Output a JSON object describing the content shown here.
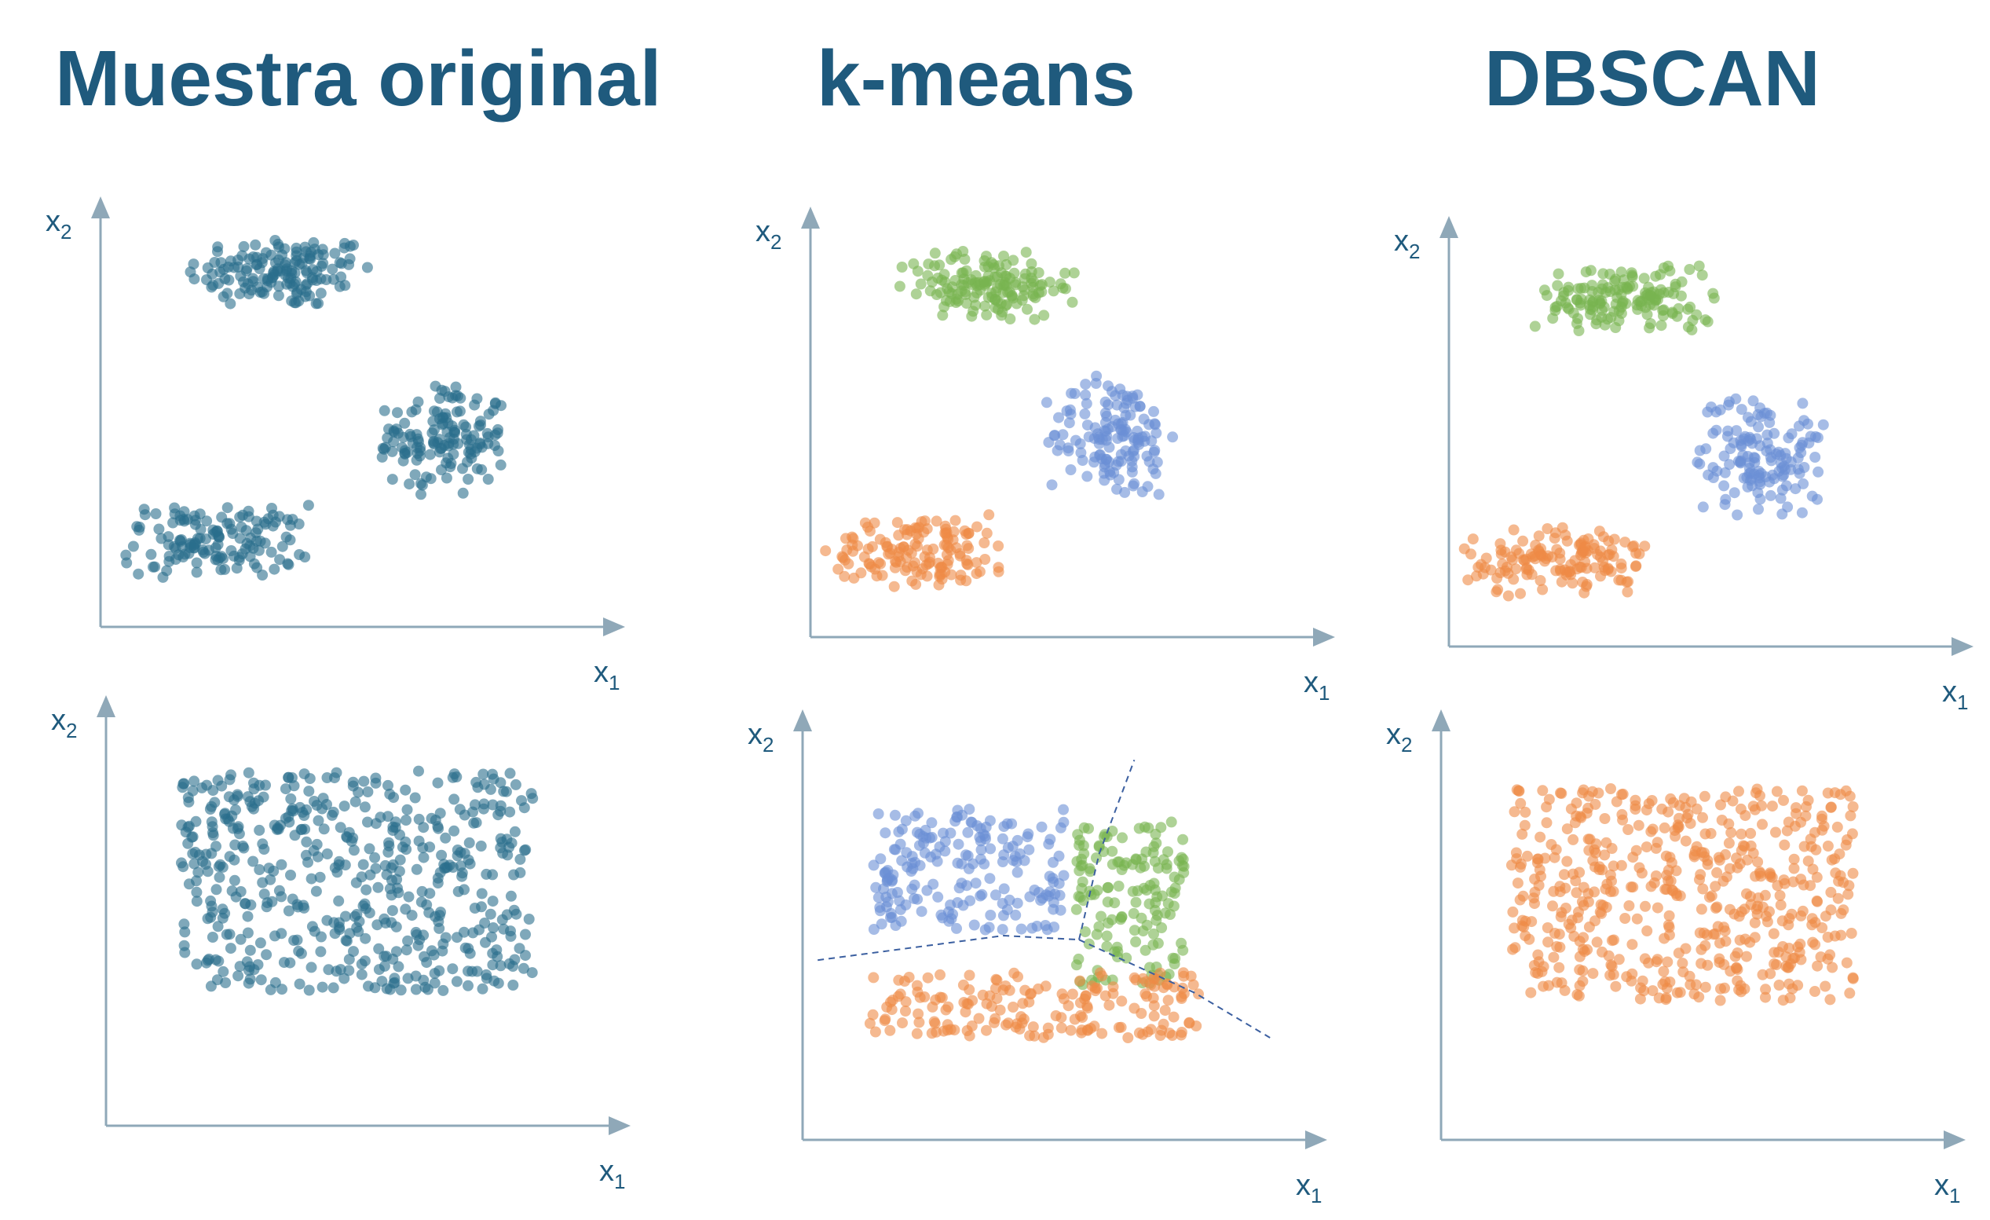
{
  "titles": {
    "original": "Muestra original",
    "kmeans": "k-means",
    "dbscan": "DBSCAN"
  },
  "axis_labels": {
    "x": "x",
    "x_sub": "1",
    "y": "x",
    "y_sub": "2"
  },
  "colors": {
    "raw": "#2a6e8c",
    "cluster_orange": "#ef8a46",
    "cluster_green": "#78b450",
    "cluster_blue": "#6b8fd6",
    "axis": "#8fa8b8",
    "boundary": "#3b5fa0"
  },
  "chart_data": [
    {
      "type": "scatter",
      "panel": "Muestra original / top",
      "xlim": [
        0,
        10
      ],
      "ylim": [
        0,
        10
      ],
      "grid": false,
      "clusters": [
        {
          "color": "raw",
          "center": [
            3.6,
            8.7
          ],
          "spread": [
            1.9,
            0.9
          ],
          "count": 150
        },
        {
          "color": "raw",
          "center": [
            6.8,
            4.6
          ],
          "spread": [
            1.3,
            1.4
          ],
          "count": 140
        },
        {
          "color": "raw",
          "center": [
            2.3,
            2.1
          ],
          "spread": [
            1.9,
            0.9
          ],
          "count": 140
        }
      ]
    },
    {
      "type": "scatter",
      "panel": "Muestra original / bottom",
      "xlim": [
        0,
        10
      ],
      "ylim": [
        0,
        10
      ],
      "grid": false,
      "clusters": [
        {
          "color": "raw",
          "center": [
            5.0,
            6.0
          ],
          "spread": [
            3.5,
            2.7
          ],
          "count": 520,
          "uniform": true
        }
      ]
    },
    {
      "type": "scatter",
      "panel": "k-means / top",
      "xlim": [
        0,
        10
      ],
      "ylim": [
        0,
        10
      ],
      "grid": false,
      "clusters": [
        {
          "color": "cluster_green",
          "center": [
            3.5,
            8.6
          ],
          "spread": [
            1.8,
            0.9
          ],
          "count": 150
        },
        {
          "color": "cluster_blue",
          "center": [
            6.0,
            4.9
          ],
          "spread": [
            1.3,
            1.5
          ],
          "count": 140
        },
        {
          "color": "cluster_orange",
          "center": [
            2.2,
            2.1
          ],
          "spread": [
            1.9,
            0.9
          ],
          "count": 140
        }
      ]
    },
    {
      "type": "scatter",
      "panel": "k-means / bottom",
      "xlim": [
        0,
        10
      ],
      "ylim": [
        0,
        10
      ],
      "grid": false,
      "clusters": [
        {
          "color": "cluster_blue",
          "center": [
            3.3,
            6.6
          ],
          "spread": [
            1.9,
            1.5
          ],
          "count": 190,
          "uniform": true
        },
        {
          "color": "cluster_green",
          "center": [
            6.5,
            5.8
          ],
          "spread": [
            1.1,
            2.0
          ],
          "count": 150,
          "uniform": true
        },
        {
          "color": "cluster_orange",
          "center": [
            4.6,
            3.3
          ],
          "spread": [
            3.3,
            0.8
          ],
          "count": 180,
          "uniform": true
        }
      ],
      "boundaries": [
        [
          [
            0.3,
            4.4
          ],
          [
            4.0,
            5.0
          ],
          [
            5.5,
            4.9
          ]
        ],
        [
          [
            5.5,
            4.9
          ],
          [
            5.9,
            7.0
          ],
          [
            6.6,
            9.3
          ]
        ],
        [
          [
            5.5,
            4.9
          ],
          [
            7.8,
            3.6
          ],
          [
            9.3,
            2.5
          ]
        ]
      ]
    },
    {
      "type": "scatter",
      "panel": "DBSCAN / top",
      "xlim": [
        0,
        10
      ],
      "ylim": [
        0,
        10
      ],
      "grid": false,
      "clusters": [
        {
          "color": "cluster_green",
          "center": [
            3.5,
            8.5
          ],
          "spread": [
            1.8,
            0.9
          ],
          "count": 150
        },
        {
          "color": "cluster_blue",
          "center": [
            6.2,
            4.7
          ],
          "spread": [
            1.3,
            1.5
          ],
          "count": 140
        },
        {
          "color": "cluster_orange",
          "center": [
            2.2,
            2.1
          ],
          "spread": [
            1.9,
            0.9
          ],
          "count": 140
        }
      ]
    },
    {
      "type": "scatter",
      "panel": "DBSCAN / bottom",
      "xlim": [
        0,
        10
      ],
      "ylim": [
        0,
        10
      ],
      "grid": false,
      "clusters": [
        {
          "color": "cluster_orange",
          "center": [
            4.8,
            6.0
          ],
          "spread": [
            3.4,
            2.6
          ],
          "count": 520,
          "uniform": true
        }
      ]
    }
  ]
}
